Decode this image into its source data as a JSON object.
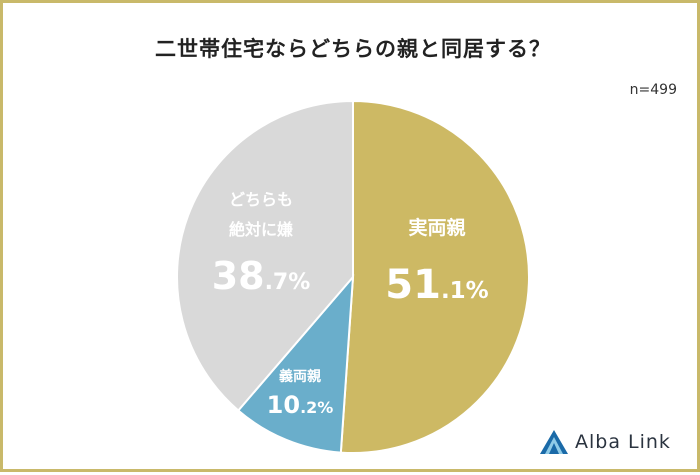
{
  "chart_data": {
    "type": "pie",
    "title": "二世帯住宅ならどちらの親と同居する？",
    "sample": "n=499",
    "slices": [
      {
        "name": "実両親",
        "lines": [
          "実両親"
        ],
        "value": 51.1,
        "int": "51",
        "dec": ".1%",
        "color": "#cdb964"
      },
      {
        "name": "義両親",
        "lines": [
          "義両親"
        ],
        "value": 10.2,
        "int": "10",
        "dec": ".2%",
        "color": "#6aaecb"
      },
      {
        "name": "どちらも絶対に嫌",
        "lines": [
          "どちらも",
          "絶対に嫌"
        ],
        "value": 38.7,
        "int": "38",
        "dec": ".7%",
        "color": "#d9d9d9"
      }
    ]
  },
  "brand": {
    "name": "Alba Link",
    "colors": {
      "dark": "#1a6aa8",
      "light": "#8fcbe8"
    }
  }
}
